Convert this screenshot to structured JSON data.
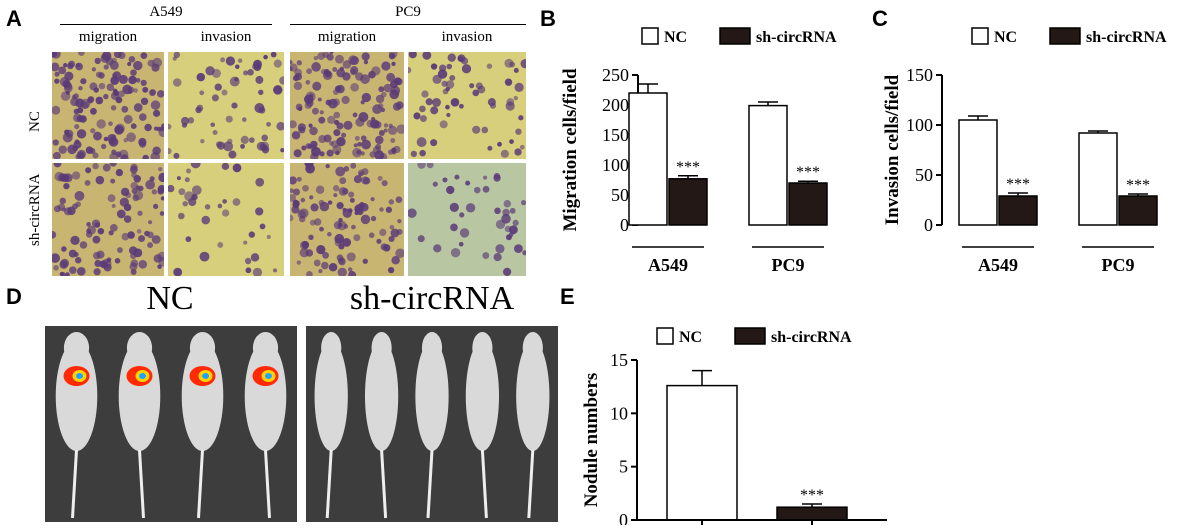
{
  "panels": {
    "a": "A",
    "b": "B",
    "c": "C",
    "d": "D",
    "e": "E"
  },
  "panel_a": {
    "cell_lines": [
      "A549",
      "PC9"
    ],
    "assays": [
      "migration",
      "invasion",
      "migration",
      "invasion"
    ],
    "rows": [
      "NC",
      "sh-circRNA"
    ]
  },
  "panel_d": {
    "titles": [
      "NC",
      "sh-circRNA"
    ]
  },
  "colors": {
    "nc_fill": "#ffffff",
    "sh_fill": "#231815",
    "migration_stain": "#c9b572",
    "invasion_stain": "#d8cf7c",
    "pc9_sh_invasion": "#b9c6a2",
    "cell": "#5a3a78",
    "mouse_bg": "#3d3d3d",
    "mouse_body": "#d9d9d9"
  },
  "chart_data": [
    {
      "id": "B",
      "type": "bar",
      "categories": [
        "A549",
        "PC9"
      ],
      "series": [
        {
          "name": "NC",
          "values": [
            220,
            199
          ],
          "errors": [
            15,
            6
          ]
        },
        {
          "name": "sh-circRNA",
          "values": [
            77,
            70
          ],
          "errors": [
            5,
            3
          ]
        }
      ],
      "significance": [
        "***",
        "***"
      ],
      "ylabel": "Migration cells/field",
      "ylim": [
        0,
        250
      ],
      "yticks": [
        0,
        50,
        100,
        150,
        200,
        250
      ],
      "legend": "top"
    },
    {
      "id": "C",
      "type": "bar",
      "categories": [
        "A549",
        "PC9"
      ],
      "series": [
        {
          "name": "NC",
          "values": [
            105,
            92
          ],
          "errors": [
            4,
            2
          ]
        },
        {
          "name": "sh-circRNA",
          "values": [
            29,
            29
          ],
          "errors": [
            3,
            2
          ]
        }
      ],
      "significance": [
        "***",
        "***"
      ],
      "ylabel": "Invasion cells/field",
      "ylim": [
        0,
        150
      ],
      "yticks": [
        0,
        50,
        100,
        150
      ],
      "legend": "top"
    },
    {
      "id": "E",
      "type": "bar",
      "categories": [
        ""
      ],
      "series": [
        {
          "name": "NC",
          "values": [
            12.6
          ],
          "errors": [
            1.4
          ]
        },
        {
          "name": "sh-circRNA",
          "values": [
            1.2
          ],
          "errors": [
            0.3
          ]
        }
      ],
      "significance": [
        "***"
      ],
      "ylabel": "Nodule numbers",
      "ylim": [
        0,
        15
      ],
      "yticks": [
        0,
        5,
        10,
        15
      ],
      "legend": "top"
    }
  ]
}
